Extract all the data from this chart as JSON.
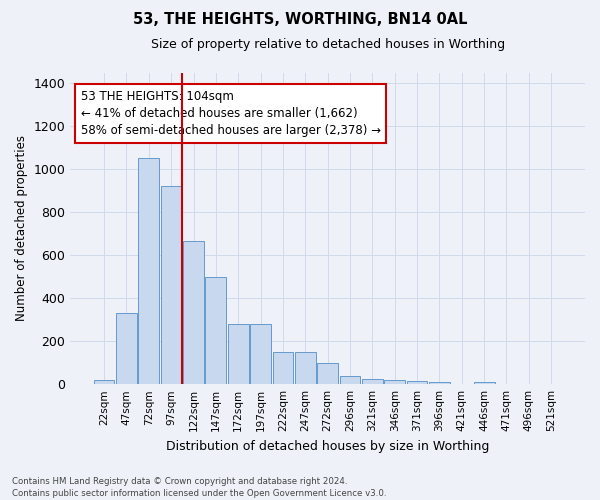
{
  "title": "53, THE HEIGHTS, WORTHING, BN14 0AL",
  "subtitle": "Size of property relative to detached houses in Worthing",
  "xlabel": "Distribution of detached houses by size in Worthing",
  "ylabel": "Number of detached properties",
  "footnote": "Contains HM Land Registry data © Crown copyright and database right 2024.\nContains public sector information licensed under the Open Government Licence v3.0.",
  "categories": [
    "22sqm",
    "47sqm",
    "72sqm",
    "97sqm",
    "122sqm",
    "147sqm",
    "172sqm",
    "197sqm",
    "222sqm",
    "247sqm",
    "272sqm",
    "296sqm",
    "321sqm",
    "346sqm",
    "371sqm",
    "396sqm",
    "421sqm",
    "446sqm",
    "471sqm",
    "496sqm",
    "521sqm"
  ],
  "values": [
    20,
    330,
    1050,
    920,
    665,
    500,
    280,
    280,
    150,
    150,
    100,
    38,
    22,
    20,
    15,
    10,
    0,
    10,
    0,
    0,
    0
  ],
  "bar_color": "#c8d8ef",
  "bar_edge_color": "#6699cc",
  "grid_color": "#d0daea",
  "background_color": "#eef2f8",
  "annotation_line1": "53 THE HEIGHTS: 104sqm",
  "annotation_line2": "← 41% of detached houses are smaller (1,662)",
  "annotation_line3": "58% of semi-detached houses are larger (2,378) →",
  "annotation_box_color": "#ffffff",
  "annotation_border_color": "#cc0000",
  "redline_color": "#cc0000",
  "ylim": [
    0,
    1450
  ],
  "yticks": [
    0,
    200,
    400,
    600,
    800,
    1000,
    1200,
    1400
  ]
}
